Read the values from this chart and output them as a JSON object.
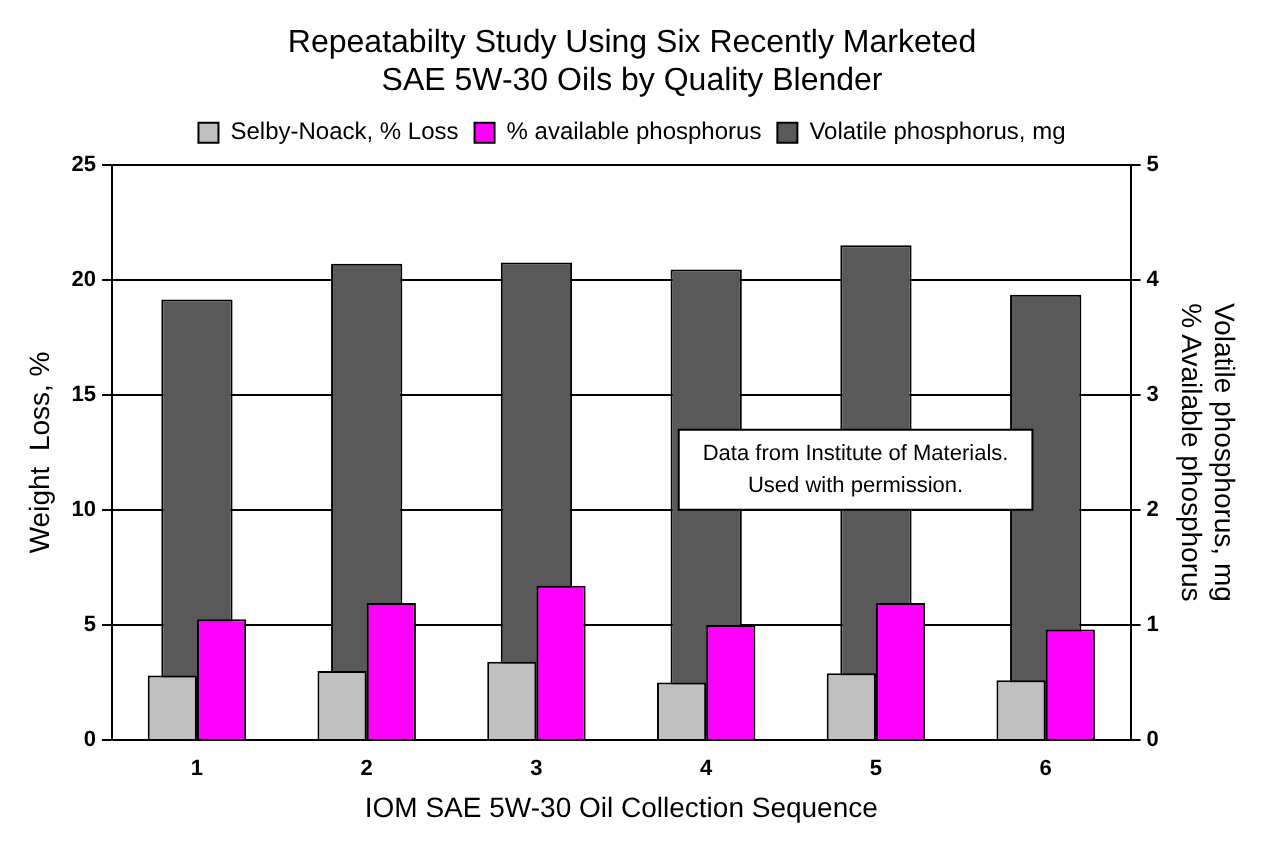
{
  "chart_data": {
    "type": "bar",
    "title": "Repeatabilty Study Using Six Recently Marketed\nSAE 5W-30 Oils by Quality Blender",
    "xlabel": "IOM SAE 5W-30 Oil Collection Sequence",
    "ylabel": "Weight  Loss, %",
    "y2label": "Volatile phosphorus, mg\n% Available phosphorus",
    "categories": [
      "1",
      "2",
      "3",
      "4",
      "5",
      "6"
    ],
    "series": [
      {
        "name": "Selby-Noack, % Loss",
        "color": "#c0c0c0",
        "values": [
          2.8,
          3.0,
          3.4,
          2.5,
          2.9,
          2.6
        ]
      },
      {
        "name": "Volatile phosphorus, mg",
        "color": "#595959",
        "axis": "y2",
        "values": [
          3.83,
          4.14,
          4.15,
          4.09,
          4.3,
          3.87
        ]
      },
      {
        "name": "% available phosphorus",
        "color": "#ff00ff",
        "axis": "y2",
        "values": [
          1.05,
          1.19,
          1.34,
          1.0,
          1.19,
          0.96
        ]
      }
    ],
    "ylim": [
      0,
      25
    ],
    "yticks": [
      0,
      5,
      10,
      15,
      20,
      25
    ],
    "y2lim": [
      0,
      5
    ],
    "y2ticks": [
      0,
      1,
      2,
      3,
      4,
      5
    ],
    "grid": "y",
    "legend": "top",
    "annotations": [
      "Data from Institute of Materials.\nUsed with permission."
    ]
  }
}
